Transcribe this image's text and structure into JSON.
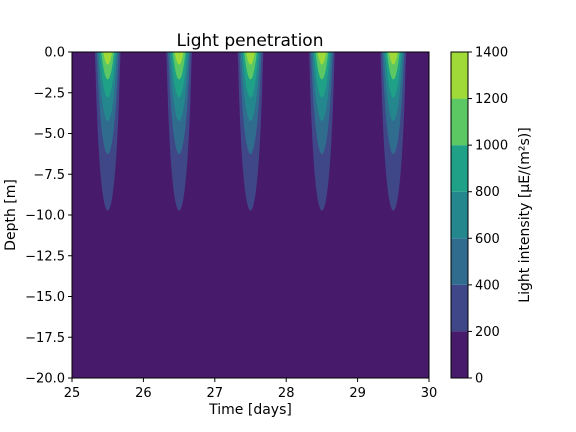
{
  "chart_data": {
    "type": "contourf",
    "title": "Light penetration",
    "xlabel": "Time [days]",
    "ylabel": "Depth [m]",
    "xlim": [
      25,
      30
    ],
    "ylim": [
      -20,
      0
    ],
    "x_ticks": [
      25,
      26,
      27,
      28,
      29,
      30
    ],
    "x_tick_labels": [
      "25",
      "26",
      "27",
      "28",
      "29",
      "30"
    ],
    "y_ticks": [
      0,
      -2.5,
      -5,
      -7.5,
      -10,
      -12.5,
      -15,
      -17.5,
      -20
    ],
    "y_tick_labels": [
      "0.0",
      "−2.5",
      "−5.0",
      "−7.5",
      "−10.0",
      "−12.5",
      "−15.0",
      "−17.5",
      "−20.0"
    ],
    "colorbar": {
      "label": "Light intensity [μE/(m²s)]",
      "levels": [
        0,
        200,
        400,
        600,
        800,
        1000,
        1200,
        1400
      ],
      "tick_labels": [
        "0",
        "200",
        "400",
        "600",
        "800",
        "1000",
        "1200",
        "1400"
      ],
      "colors": [
        "#481a6c",
        "#3f4788",
        "#2f6c8e",
        "#24878e",
        "#1fa188",
        "#5cc863",
        "#a0da39",
        "#e3e418"
      ]
    },
    "field": {
      "surface_max": 1400,
      "noon_times": [
        25.5,
        26.5,
        27.5,
        28.5,
        29.5
      ],
      "day_length": 0.45,
      "pulse_power": 2,
      "attenuation_per_m": 0.2
    }
  }
}
